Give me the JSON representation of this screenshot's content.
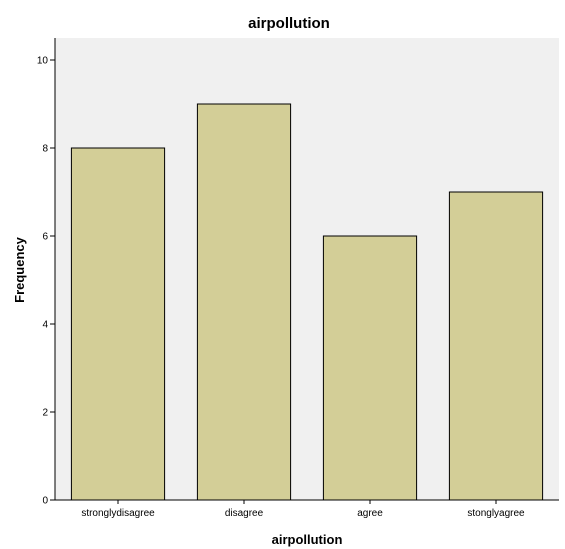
{
  "chart_data": {
    "type": "bar",
    "title": "airpollution",
    "xlabel": "airpollution",
    "ylabel": "Frequency",
    "categories": [
      "stronglydisagree",
      "disagree",
      "agree",
      "stonglyagree"
    ],
    "values": [
      8,
      9,
      6,
      7
    ],
    "ylim": [
      0,
      10.5
    ],
    "yticks": [
      0,
      2,
      4,
      6,
      8,
      10
    ],
    "ytick_labels": [
      "0",
      "2",
      "4",
      "6",
      "8",
      "10"
    ],
    "grid": false,
    "legend": "none",
    "colors": {
      "plot_background": "#f0f0f0",
      "bar_fill": "#d3ce97",
      "bar_stroke": "#000000",
      "axis": "#000000"
    }
  }
}
